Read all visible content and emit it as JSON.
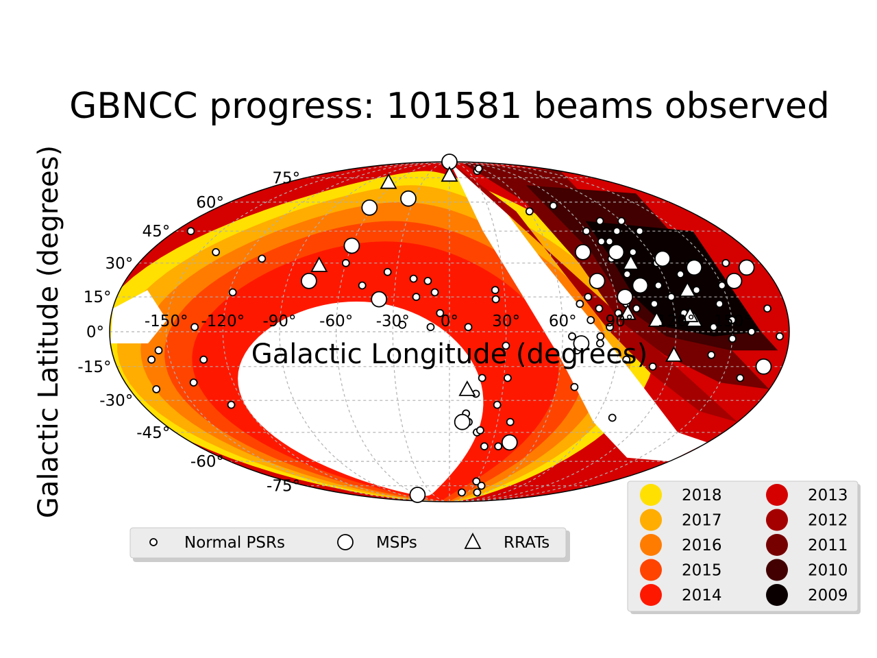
{
  "chart_data": {
    "type": "scatter",
    "projection": "mollweide",
    "title": "GBNCC progress: 101581 beams observed",
    "xlabel": "Galactic Longitude (degrees)",
    "ylabel": "Galactic Latitude (degrees)",
    "xlim": [
      -180,
      180
    ],
    "ylim": [
      -90,
      90
    ],
    "grid": true,
    "x_ticks": [
      "-150°",
      "-120°",
      "-90°",
      "-60°",
      "-30°",
      "0°",
      "30°",
      "60°",
      "90°",
      "120°",
      "150°"
    ],
    "y_ticks": [
      "-75°",
      "-60°",
      "-45°",
      "-30°",
      "-15°",
      "0°",
      "15°",
      "30°",
      "45°",
      "60°",
      "75°"
    ],
    "year_legend": {
      "placement": "lower-right",
      "entries": [
        {
          "label": "2018",
          "color": "#ffe000"
        },
        {
          "label": "2017",
          "color": "#ffad00"
        },
        {
          "label": "2016",
          "color": "#ff7c00"
        },
        {
          "label": "2015",
          "color": "#ff4400"
        },
        {
          "label": "2014",
          "color": "#ff1800"
        },
        {
          "label": "2013",
          "color": "#d50000"
        },
        {
          "label": "2012",
          "color": "#a40000"
        },
        {
          "label": "2011",
          "color": "#760000"
        },
        {
          "label": "2010",
          "color": "#420000"
        },
        {
          "label": "2009",
          "color": "#0b0000"
        }
      ]
    },
    "source_legend": {
      "placement": "lower-center",
      "entries": [
        {
          "label": "Normal PSRs",
          "marker": "small-circle"
        },
        {
          "label": "MSPs",
          "marker": "large-circle"
        },
        {
          "label": "RRATs",
          "marker": "triangle"
        }
      ]
    },
    "coverage_bands": [
      {
        "year": "2009",
        "center": [
          135,
          10
        ],
        "rx": 33,
        "ry": 20
      },
      {
        "year": "2010",
        "center": [
          130,
          15
        ],
        "rx": 50,
        "ry": 32
      },
      {
        "year": "2011",
        "center": [
          120,
          18
        ],
        "rx": 68,
        "ry": 45
      },
      {
        "year": "2012",
        "center": [
          110,
          15
        ],
        "rx": 90,
        "ry": 65
      }
    ],
    "series": [
      {
        "name": "Normal PSRs",
        "points": [
          [
            -170,
            45
          ],
          [
            -140,
            35
          ],
          [
            -110,
            32
          ],
          [
            -118,
            17
          ],
          [
            -135,
            2
          ],
          [
            -160,
            -12
          ],
          [
            -155,
            -8
          ],
          [
            -165,
            -25
          ],
          [
            -142,
            -22
          ],
          [
            -132,
            -12
          ],
          [
            -128,
            -32
          ],
          [
            -60,
            30
          ],
          [
            -48,
            20
          ],
          [
            -35,
            26
          ],
          [
            -20,
            23
          ],
          [
            -12,
            22
          ],
          [
            -8,
            17
          ],
          [
            -18,
            15
          ],
          [
            -5,
            8
          ],
          [
            -10,
            2
          ],
          [
            -25,
            3
          ],
          [
            10,
            2
          ],
          [
            25,
            14
          ],
          [
            25,
            18
          ],
          [
            30,
            -6
          ],
          [
            18,
            -20
          ],
          [
            15,
            -27
          ],
          [
            12,
            -40
          ],
          [
            18,
            -45
          ],
          [
            25,
            -52
          ],
          [
            20,
            -44
          ],
          [
            10,
            -36
          ],
          [
            32,
            -20
          ],
          [
            28,
            -32
          ],
          [
            35,
            -52
          ],
          [
            38,
            -40
          ],
          [
            30,
            -72
          ],
          [
            40,
            -75
          ],
          [
            45,
            -80
          ],
          [
            20,
            -80
          ],
          [
            45,
            80
          ],
          [
            55,
            82
          ],
          [
            60,
            55
          ],
          [
            82,
            58
          ],
          [
            90,
            45
          ],
          [
            95,
            40
          ],
          [
            105,
            50
          ],
          [
            110,
            45
          ],
          [
            100,
            40
          ],
          [
            120,
            50
          ],
          [
            125,
            45
          ],
          [
            95,
            32
          ],
          [
            100,
            25
          ],
          [
            110,
            35
          ],
          [
            120,
            30
          ],
          [
            130,
            25
          ],
          [
            140,
            30
          ],
          [
            150,
            20
          ],
          [
            160,
            30
          ],
          [
            170,
            28
          ],
          [
            75,
            15
          ],
          [
            80,
            10
          ],
          [
            70,
            12
          ],
          [
            75,
            5
          ],
          [
            85,
            2
          ],
          [
            90,
            8
          ],
          [
            95,
            12
          ],
          [
            100,
            10
          ],
          [
            110,
            12
          ],
          [
            120,
            15
          ],
          [
            125,
            8
          ],
          [
            130,
            5
          ],
          [
            140,
            2
          ],
          [
            150,
            5
          ],
          [
            160,
            0
          ],
          [
            170,
            10
          ],
          [
            175,
            -2
          ],
          [
            65,
            -2
          ],
          [
            68,
            -8
          ],
          [
            80,
            -5
          ],
          [
            95,
            -12
          ],
          [
            110,
            -15
          ],
          [
            140,
            -10
          ],
          [
            150,
            -3
          ],
          [
            160,
            -20
          ],
          [
            100,
            -38
          ],
          [
            70,
            -24
          ],
          [
            80,
            -2
          ],
          [
            115,
            20
          ],
          [
            105,
            22
          ],
          [
            135,
            18
          ],
          [
            145,
            12
          ]
        ]
      },
      {
        "name": "MSPs",
        "points": [
          [
            -62,
            57
          ],
          [
            -35,
            62
          ],
          [
            -60,
            38
          ],
          [
            -78,
            22
          ],
          [
            -38,
            14
          ],
          [
            80,
            90
          ],
          [
            80,
            35
          ],
          [
            100,
            35
          ],
          [
            82,
            22
          ],
          [
            105,
            20
          ],
          [
            125,
            32
          ],
          [
            140,
            28
          ],
          [
            158,
            22
          ],
          [
            170,
            28
          ],
          [
            170,
            -15
          ],
          [
            42,
            -50
          ],
          [
            8,
            -40
          ],
          [
            70,
            -5
          ],
          [
            -60,
            -82
          ],
          [
            95,
            15
          ]
        ]
      },
      {
        "name": "RRATs",
        "points": [
          [
            -68,
            72
          ],
          [
            0,
            77
          ],
          [
            -75,
            29
          ],
          [
            10,
            -25
          ],
          [
            105,
            30
          ],
          [
            110,
            5
          ],
          [
            130,
            5
          ],
          [
            128,
            7
          ],
          [
            130,
            18
          ],
          [
            120,
            -10
          ],
          [
            95,
            8
          ]
        ]
      }
    ]
  }
}
